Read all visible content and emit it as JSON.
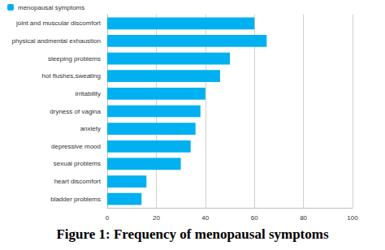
{
  "chart_data": {
    "type": "bar",
    "orientation": "horizontal",
    "title": "Figure 1: Frequency of menopausal symptoms",
    "categories": [
      "joint and muscular discomfort",
      "physical andmental exhaustion",
      "sleeping problems",
      "hot flushes,sweating",
      "irritability",
      "dryness of vagina",
      "anxiety",
      "depressive mood",
      "sexual problems",
      "heart discomfort",
      "bladder problems"
    ],
    "series": [
      {
        "name": "menopausal symptoms",
        "color": "#00b0f0",
        "values": [
          60,
          65,
          50,
          46,
          40,
          38,
          36,
          34,
          30,
          16,
          14
        ]
      }
    ],
    "xlim": [
      0,
      100
    ],
    "xticks": [
      0,
      20,
      40,
      60,
      80,
      100
    ],
    "grid": true,
    "legend": "top-left"
  }
}
